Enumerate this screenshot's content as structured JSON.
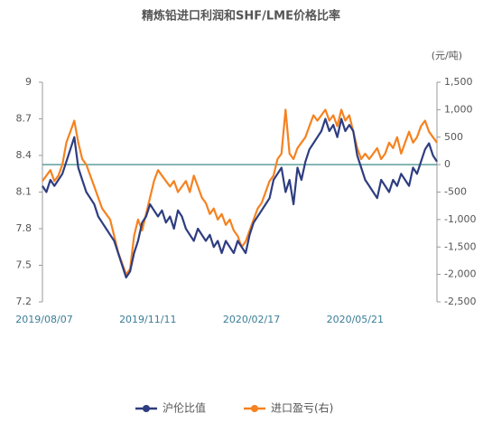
{
  "chart_data": {
    "type": "line",
    "title": "精炼铅进口利润和SHF/LME价格比率",
    "y2_label": "(元/吨)",
    "categories": [
      "2019/08/07",
      null,
      null,
      null,
      null,
      null,
      null,
      null,
      null,
      null,
      null,
      null,
      null,
      null,
      null,
      null,
      null,
      null,
      null,
      null,
      null,
      null,
      null,
      null,
      null,
      null,
      "2019/11/11",
      null,
      null,
      null,
      null,
      null,
      null,
      null,
      null,
      null,
      null,
      null,
      null,
      null,
      null,
      null,
      null,
      null,
      null,
      null,
      null,
      null,
      null,
      null,
      null,
      null,
      "2020/02/17",
      null,
      null,
      null,
      null,
      null,
      null,
      null,
      null,
      null,
      null,
      null,
      null,
      null,
      null,
      null,
      null,
      null,
      null,
      null,
      null,
      null,
      null,
      null,
      null,
      null,
      "2020/05/21",
      null,
      null,
      null,
      null,
      null,
      null,
      null,
      null,
      null,
      null,
      null,
      null,
      null,
      null,
      null,
      null,
      null,
      null,
      null,
      null,
      null
    ],
    "series": [
      {
        "name": "沪伦比值",
        "color": "#2e3d80",
        "axis": "y",
        "values": [
          8.15,
          8.1,
          8.2,
          8.15,
          8.2,
          8.25,
          8.35,
          8.45,
          8.55,
          8.3,
          8.2,
          8.1,
          8.05,
          8.0,
          7.9,
          7.85,
          7.8,
          7.75,
          7.7,
          7.6,
          7.5,
          7.4,
          7.45,
          7.6,
          7.7,
          7.85,
          7.9,
          8.0,
          7.95,
          7.9,
          7.95,
          7.85,
          7.9,
          7.8,
          7.95,
          7.9,
          7.8,
          7.75,
          7.7,
          7.8,
          7.75,
          7.7,
          7.75,
          7.65,
          7.7,
          7.6,
          7.7,
          7.65,
          7.6,
          7.7,
          7.65,
          7.6,
          7.75,
          7.85,
          7.9,
          7.95,
          8.0,
          8.05,
          8.2,
          8.25,
          8.3,
          8.1,
          8.2,
          8.0,
          8.3,
          8.2,
          8.35,
          8.45,
          8.5,
          8.55,
          8.6,
          8.7,
          8.6,
          8.65,
          8.55,
          8.7,
          8.6,
          8.65,
          8.6,
          8.4,
          8.3,
          8.2,
          8.15,
          8.1,
          8.05,
          8.2,
          8.15,
          8.1,
          8.2,
          8.15,
          8.25,
          8.2,
          8.15,
          8.3,
          8.25,
          8.35,
          8.45,
          8.5,
          8.4,
          8.35
        ]
      },
      {
        "name": "进口盈亏(右)",
        "color": "#f58220",
        "axis": "y2",
        "values": [
          -300,
          -200,
          -100,
          -300,
          -200,
          0,
          400,
          600,
          800,
          400,
          100,
          0,
          -200,
          -400,
          -600,
          -800,
          -900,
          -1000,
          -1300,
          -1600,
          -1800,
          -2000,
          -1900,
          -1300,
          -1000,
          -1200,
          -900,
          -600,
          -300,
          -100,
          -200,
          -300,
          -400,
          -300,
          -500,
          -400,
          -300,
          -500,
          -200,
          -400,
          -600,
          -700,
          -900,
          -800,
          -1000,
          -900,
          -1100,
          -1000,
          -1200,
          -1300,
          -1500,
          -1400,
          -1200,
          -1000,
          -800,
          -700,
          -500,
          -300,
          -200,
          100,
          200,
          1000,
          200,
          100,
          300,
          400,
          500,
          700,
          900,
          800,
          900,
          1000,
          800,
          900,
          700,
          1000,
          800,
          900,
          600,
          300,
          100,
          200,
          100,
          200,
          300,
          100,
          200,
          400,
          300,
          500,
          200,
          400,
          600,
          400,
          500,
          700,
          800,
          600,
          500,
          400
        ]
      }
    ],
    "ylim": [
      7.2,
      9
    ],
    "yticks": [
      7.2,
      7.5,
      7.8,
      8.1,
      8.4,
      8.7,
      9
    ],
    "y2lim": [
      -2500,
      1500
    ],
    "y2ticks": [
      {
        "value": -2500,
        "label": "-2,500"
      },
      {
        "value": -2000,
        "label": "-2,000"
      },
      {
        "value": -1500,
        "label": "-1,500"
      },
      {
        "value": -1000,
        "label": "-1,000"
      },
      -500,
      0,
      500,
      {
        "value": 1000,
        "label": "1,000"
      },
      {
        "value": 1500,
        "label": "1,500"
      }
    ],
    "legend": "bottom"
  }
}
